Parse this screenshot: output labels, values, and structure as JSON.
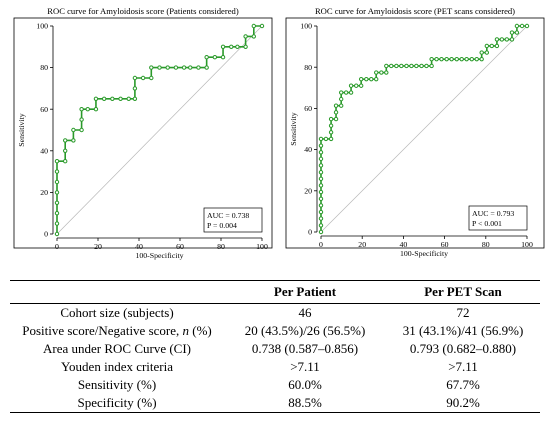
{
  "chart_data": [
    {
      "type": "line",
      "title": "ROC curve for Amyloidosis score (Patients considered)",
      "xlabel": "100-Specificity",
      "ylabel": "Sensitivity",
      "xlim": [
        0,
        100
      ],
      "ylim": [
        0,
        100
      ],
      "x_ticks": [
        "0",
        "20",
        "40",
        "60",
        "80",
        "100"
      ],
      "y_ticks": [
        "0",
        "20",
        "40",
        "60",
        "80",
        "100"
      ],
      "grid": false,
      "series": [
        {
          "color": "#2a9a2a",
          "points": [
            [
              0,
              0
            ],
            [
              0,
              5
            ],
            [
              0,
              10
            ],
            [
              0,
              15
            ],
            [
              0,
              20
            ],
            [
              0,
              25
            ],
            [
              0,
              30
            ],
            [
              0,
              35
            ],
            [
              4,
              35
            ],
            [
              4,
              40
            ],
            [
              4,
              45
            ],
            [
              8,
              45
            ],
            [
              8,
              50
            ],
            [
              12,
              50
            ],
            [
              12,
              55
            ],
            [
              12,
              60
            ],
            [
              15,
              60
            ],
            [
              19,
              60
            ],
            [
              19,
              65
            ],
            [
              23,
              65
            ],
            [
              27,
              65
            ],
            [
              31,
              65
            ],
            [
              35,
              65
            ],
            [
              38,
              65
            ],
            [
              38,
              70
            ],
            [
              38,
              75
            ],
            [
              42,
              75
            ],
            [
              46,
              75
            ],
            [
              46,
              80
            ],
            [
              50,
              80
            ],
            [
              54,
              80
            ],
            [
              58,
              80
            ],
            [
              62,
              80
            ],
            [
              65,
              80
            ],
            [
              69,
              80
            ],
            [
              73,
              80
            ],
            [
              73,
              85
            ],
            [
              77,
              85
            ],
            [
              81,
              85
            ],
            [
              81,
              90
            ],
            [
              85,
              90
            ],
            [
              88,
              90
            ],
            [
              92,
              90
            ],
            [
              92,
              95
            ],
            [
              96,
              95
            ],
            [
              96,
              100
            ],
            [
              100,
              100
            ]
          ]
        }
      ],
      "reference_line": true,
      "annotation": [
        "AUC = 0.738",
        "P = 0.004"
      ]
    },
    {
      "type": "line",
      "title": "ROC curve for Amyloidosis score (PET scans considered)",
      "xlabel": "100-Specificity",
      "ylabel": "Sensitivity",
      "xlim": [
        0,
        100
      ],
      "ylim": [
        0,
        100
      ],
      "x_ticks": [
        "0",
        "20",
        "40",
        "60",
        "80",
        "100"
      ],
      "y_ticks": [
        "0",
        "20",
        "40",
        "60",
        "80",
        "100"
      ],
      "grid": false,
      "series": [
        {
          "color": "#2a9a2a",
          "points": [
            [
              0,
              0
            ],
            [
              0,
              3.2
            ],
            [
              0,
              6.5
            ],
            [
              0,
              9.7
            ],
            [
              0,
              12.9
            ],
            [
              0,
              16.1
            ],
            [
              0,
              19.4
            ],
            [
              0,
              22.6
            ],
            [
              0,
              25.8
            ],
            [
              0,
              29
            ],
            [
              0,
              32.3
            ],
            [
              0,
              35.5
            ],
            [
              0,
              38.7
            ],
            [
              0,
              41.9
            ],
            [
              0,
              45.2
            ],
            [
              2.4,
              45.2
            ],
            [
              4.9,
              45.2
            ],
            [
              4.9,
              48.4
            ],
            [
              4.9,
              51.6
            ],
            [
              4.9,
              54.8
            ],
            [
              7.3,
              54.8
            ],
            [
              7.3,
              58.1
            ],
            [
              7.3,
              61.3
            ],
            [
              9.8,
              61.3
            ],
            [
              9.8,
              64.5
            ],
            [
              9.8,
              67.7
            ],
            [
              12.2,
              67.7
            ],
            [
              14.6,
              67.7
            ],
            [
              14.6,
              71
            ],
            [
              17.1,
              71
            ],
            [
              19.5,
              71
            ],
            [
              19.5,
              74.2
            ],
            [
              22,
              74.2
            ],
            [
              24.4,
              74.2
            ],
            [
              26.8,
              74.2
            ],
            [
              26.8,
              77.4
            ],
            [
              29.3,
              77.4
            ],
            [
              31.7,
              77.4
            ],
            [
              31.7,
              80.6
            ],
            [
              34.1,
              80.6
            ],
            [
              36.6,
              80.6
            ],
            [
              39,
              80.6
            ],
            [
              41.5,
              80.6
            ],
            [
              43.9,
              80.6
            ],
            [
              46.3,
              80.6
            ],
            [
              48.8,
              80.6
            ],
            [
              51.2,
              80.6
            ],
            [
              53.7,
              80.6
            ],
            [
              53.7,
              83.9
            ],
            [
              56.1,
              83.9
            ],
            [
              58.5,
              83.9
            ],
            [
              61,
              83.9
            ],
            [
              63.4,
              83.9
            ],
            [
              65.9,
              83.9
            ],
            [
              68.3,
              83.9
            ],
            [
              70.7,
              83.9
            ],
            [
              73.2,
              83.9
            ],
            [
              75.6,
              83.9
            ],
            [
              78,
              83.9
            ],
            [
              78,
              87.1
            ],
            [
              80.5,
              87.1
            ],
            [
              80.5,
              90.3
            ],
            [
              82.9,
              90.3
            ],
            [
              85.4,
              90.3
            ],
            [
              85.4,
              93.5
            ],
            [
              87.8,
              93.5
            ],
            [
              90.2,
              93.5
            ],
            [
              92.7,
              93.5
            ],
            [
              92.7,
              96.8
            ],
            [
              95.1,
              96.8
            ],
            [
              95.1,
              100
            ],
            [
              97.6,
              100
            ],
            [
              100,
              100
            ]
          ]
        }
      ],
      "reference_line": true,
      "annotation": [
        "AUC = 0.793",
        "P < 0.001"
      ]
    }
  ],
  "table": {
    "headers": [
      "",
      "Per Patient",
      "Per PET Scan"
    ],
    "rows": [
      [
        "Cohort size (subjects)",
        "46",
        "72"
      ],
      [
        "Positive score/Negative score, n (%)",
        "20 (43.5%)/26 (56.5%)",
        "31 (43.1%)/41 (56.9%)"
      ],
      [
        "Area under ROC Curve (CI)",
        "0.738 (0.587–0.856)",
        "0.793 (0.682–0.880)"
      ],
      [
        "Youden index criteria",
        ">7.11",
        ">7.11"
      ],
      [
        "Sensitivity (%)",
        "60.0%",
        "67.7%"
      ],
      [
        "Specificity (%)",
        "88.5%",
        "90.2%"
      ]
    ]
  }
}
